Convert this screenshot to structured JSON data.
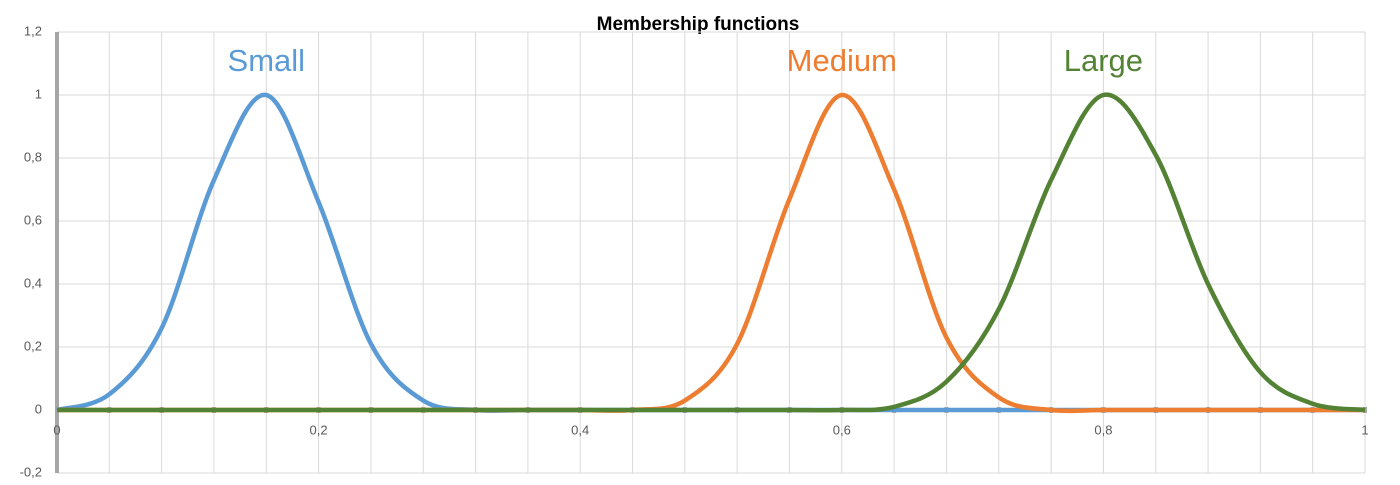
{
  "chart_data": {
    "type": "line",
    "title": "Membership functions",
    "x": [
      0,
      0.04,
      0.08,
      0.12,
      0.16,
      0.2,
      0.24,
      0.28,
      0.32,
      0.36,
      0.4,
      0.44,
      0.48,
      0.52,
      0.56,
      0.6,
      0.64,
      0.68,
      0.72,
      0.76,
      0.8,
      0.84,
      0.88,
      0.92,
      0.96,
      1
    ],
    "series": [
      {
        "name": "Small",
        "color": "#5b9bd5",
        "values": [
          0,
          0.05,
          0.26,
          0.73,
          1,
          0.66,
          0.21,
          0.03,
          0,
          0,
          0,
          0,
          0,
          0,
          0,
          0,
          0,
          0,
          0,
          0,
          0,
          0,
          0,
          0,
          0,
          0
        ]
      },
      {
        "name": "Medium",
        "color": "#ed7d31",
        "values": [
          0,
          0,
          0,
          0,
          0,
          0,
          0,
          0,
          0,
          0,
          0,
          0,
          0.03,
          0.21,
          0.67,
          1,
          0.7,
          0.23,
          0.04,
          0,
          0,
          0,
          0,
          0,
          0,
          0
        ]
      },
      {
        "name": "Large",
        "color": "#548235",
        "values": [
          0,
          0,
          0,
          0,
          0,
          0,
          0,
          0,
          0,
          0,
          0,
          0,
          0,
          0,
          0,
          0,
          0.01,
          0.09,
          0.32,
          0.73,
          1,
          0.81,
          0.4,
          0.12,
          0.02,
          0
        ]
      }
    ],
    "xlim": [
      0,
      1
    ],
    "xticks": [
      0,
      {
        "value": 0.2,
        "label": "0,2"
      },
      {
        "value": 0.4,
        "label": "0,4"
      },
      {
        "value": 0.6,
        "label": "0,6"
      },
      {
        "value": 0.8,
        "label": "0,8"
      },
      1
    ],
    "ylim": [
      -0.2,
      1.2
    ],
    "yticks": [
      {
        "value": -0.2,
        "label": "-0,2"
      },
      0,
      {
        "value": 0.2,
        "label": "0,2"
      },
      {
        "value": 0.4,
        "label": "0,4"
      },
      {
        "value": 0.6,
        "label": "0,6"
      },
      {
        "value": 0.8,
        "label": "0,8"
      },
      1,
      {
        "value": 1.2,
        "label": "1,2"
      }
    ],
    "grid": true
  }
}
